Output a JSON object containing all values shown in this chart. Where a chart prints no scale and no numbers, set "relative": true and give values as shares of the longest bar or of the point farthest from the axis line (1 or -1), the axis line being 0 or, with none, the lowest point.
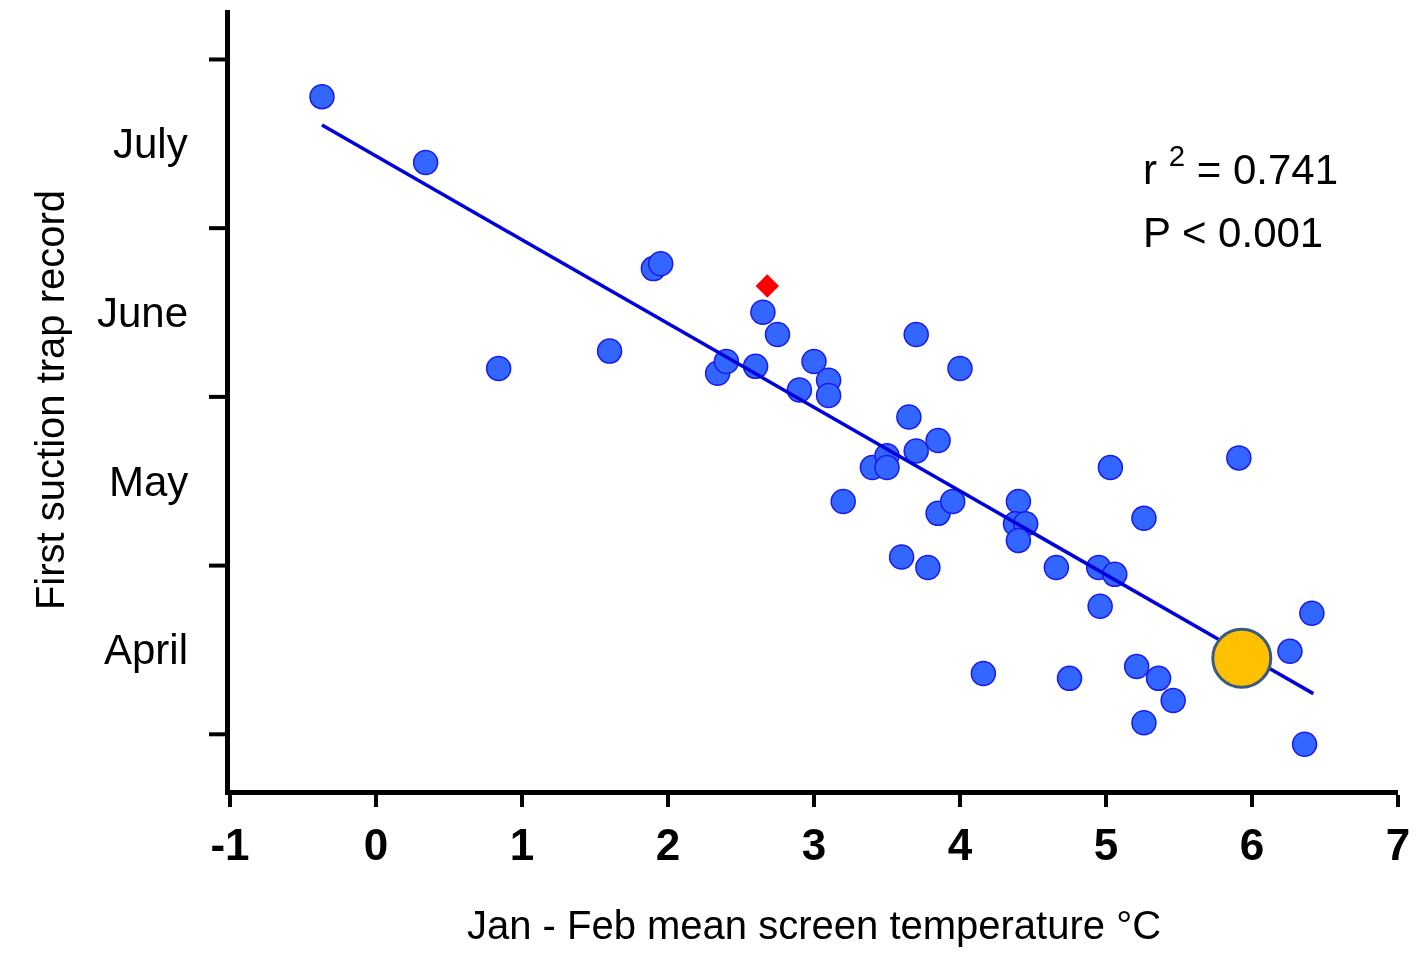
{
  "chart_data": {
    "type": "scatter",
    "relative": true,
    "xlabel": "Jan - Feb mean screen temperature °C",
    "ylabel": "First suction trap record",
    "xlim": [
      -1,
      7
    ],
    "xticks": [
      -1,
      0,
      1,
      2,
      3,
      4,
      5,
      6,
      7
    ],
    "annotations": [
      "July",
      "June",
      "May",
      "April",
      "r $^{2}$ = 0.741",
      "P < 0.001"
    ],
    "series": [
      {
        "marker": "circle",
        "color": "#3366ff",
        "x": [
          -0.37,
          0.34,
          0.84,
          1.6,
          1.9,
          1.95,
          2.34,
          2.4,
          2.6,
          2.65,
          2.75,
          2.9,
          3.0,
          3.1,
          3.1,
          3.2,
          3.4,
          3.5,
          3.5,
          3.6,
          3.65,
          3.7,
          3.7,
          3.78,
          3.85,
          3.85,
          3.95,
          4.0,
          4.16,
          4.4,
          4.38,
          4.45,
          4.4,
          4.66,
          4.75,
          4.95,
          5.06,
          4.96,
          5.03,
          5.21,
          5.26,
          5.26,
          5.36,
          5.46,
          5.91,
          6.26,
          6.36,
          6.41
        ],
        "values": [
          1.0,
          0.905,
          0.608,
          0.633,
          0.752,
          0.759,
          0.601,
          0.618,
          0.611,
          0.689,
          0.657,
          0.577,
          0.618,
          0.591,
          0.569,
          0.416,
          0.465,
          0.482,
          0.465,
          0.336,
          0.538,
          0.657,
          0.489,
          0.321,
          0.504,
          0.399,
          0.416,
          0.608,
          0.168,
          0.416,
          0.384,
          0.384,
          0.36,
          0.321,
          0.161,
          0.321,
          0.311,
          0.265,
          0.465,
          0.178,
          0.392,
          0.097,
          0.161,
          0.129,
          0.479,
          0.2,
          0.066,
          0.255
        ]
      },
      {
        "type": "line",
        "marker": "none",
        "line_style": "solid",
        "color": "#0000dd",
        "x": [
          -0.37,
          6.42
        ],
        "values": [
          0.959,
          0.139
        ]
      },
      {
        "marker": "circle",
        "color": "#ffc000",
        "x": [
          5.93
        ],
        "values": [
          0.19
        ]
      },
      {
        "marker": "diamond",
        "color": "#ff0000",
        "x": [
          2.68
        ],
        "values": [
          0.727
        ]
      }
    ]
  }
}
